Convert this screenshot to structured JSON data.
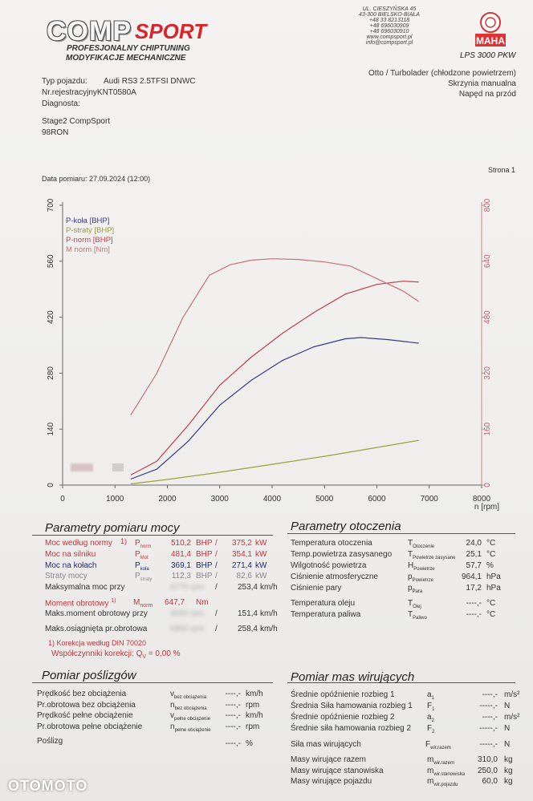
{
  "header": {
    "logo_comp": "COMP",
    "logo_sport": "SPORT",
    "tagline_1": "PROFESJONALNY CHIPTUNING",
    "tagline_2": "MODYFIKACJE MECHANICZNE",
    "address": [
      "UL. CIESZYŃSKA 45",
      "43-300 BIELSKO-BIAŁA",
      "+48 33 8213118",
      "+48 696030909",
      "+48 696030910",
      "www.compsport.pl",
      "info@compsport.pl"
    ],
    "maha_label": "MAHA",
    "lps": "LPS 3000 PKW"
  },
  "vehicle": {
    "typ_label": "Typ pojazdu:",
    "typ_value": "Audi RS3 2.5TFSI DNWC",
    "nr_rej": "Nr.rejestracyjnyKNT0580A",
    "diagnosta": "Diagnosta:",
    "stage": "Stage2 CompSport",
    "fuel": "98RON",
    "engine": "Otto / Turbolader (chłodzone powietrzem)",
    "gearbox": "Skrzynia manualna",
    "drive": "Napęd na przód",
    "date": "Data pomiaru: 27.09.2024 (12:00)",
    "page": "Strona 1"
  },
  "chart_data": {
    "type": "line",
    "xlabel": "n [rpm]",
    "xlim": [
      0,
      8000
    ],
    "x_ticks": [
      0,
      1000,
      2000,
      3000,
      4000,
      5000,
      6000,
      7000,
      8000
    ],
    "ylim_left": [
      0,
      700
    ],
    "y_ticks_left": [
      0,
      140,
      280,
      420,
      560,
      700
    ],
    "ylim_right": [
      0,
      800
    ],
    "y_ticks_right": [
      0,
      160,
      320,
      480,
      640,
      800
    ],
    "legend": [
      {
        "label": "P-koła [BHP]",
        "color": "#3a3a8a"
      },
      {
        "label": "P-straty [BHP]",
        "color": "#9aa23a"
      },
      {
        "label": "P-norm [BHP]",
        "color": "#c0404a"
      },
      {
        "label": "M norm [Nm]",
        "color": "#c87078"
      }
    ],
    "series": [
      {
        "name": "P-koła [BHP]",
        "axis": "left",
        "color": "#3a3a8a",
        "x": [
          1300,
          1800,
          2400,
          3000,
          3600,
          4200,
          4800,
          5400,
          5700,
          6200,
          6800
        ],
        "y": [
          15,
          40,
          110,
          200,
          262,
          312,
          346,
          366,
          369,
          364,
          355
        ]
      },
      {
        "name": "P-straty [BHP]",
        "axis": "left",
        "color": "#9aa23a",
        "x": [
          1300,
          2000,
          3000,
          4000,
          5000,
          6000,
          6800
        ],
        "y": [
          3,
          14,
          32,
          52,
          72,
          94,
          112
        ]
      },
      {
        "name": "P-norm [BHP]",
        "axis": "left",
        "color": "#c0404a",
        "x": [
          1300,
          1800,
          2400,
          3000,
          3600,
          4200,
          4800,
          5400,
          6000,
          6500,
          6800
        ],
        "y": [
          25,
          60,
          150,
          250,
          320,
          380,
          432,
          478,
          502,
          510,
          508
        ]
      },
      {
        "name": "M norm [Nm]",
        "axis": "right",
        "color": "#c87078",
        "x": [
          1300,
          1800,
          2300,
          2800,
          3200,
          3600,
          4000,
          4500,
          5000,
          5500,
          6000,
          6500,
          6800
        ],
        "y": [
          200,
          320,
          480,
          600,
          630,
          643,
          647,
          645,
          638,
          626,
          590,
          555,
          525
        ]
      }
    ]
  },
  "params_moc": {
    "title": "Parametry pomiaru mocy",
    "rows": [
      {
        "label": "Moc według normy",
        "sup": "1)",
        "sym": "P",
        "sub": "norm",
        "v1": "510,2",
        "u1": "BHP",
        "v2": "375,2",
        "u2": "kW",
        "cls": "red"
      },
      {
        "label": "Moc na silniku",
        "sup": "",
        "sym": "P",
        "sub": "Mot",
        "v1": "481,4",
        "u1": "BHP",
        "v2": "354,1",
        "u2": "kW",
        "cls": "red"
      },
      {
        "label": "Moc na kołach",
        "sup": "",
        "sym": "P",
        "sub": "koła",
        "v1": "369,1",
        "u1": "BHP",
        "v2": "271,4",
        "u2": "kW",
        "cls": "blue"
      },
      {
        "label": "Straty mocy",
        "sup": "",
        "sym": "P",
        "sub": "straty",
        "v1": "112,3",
        "u1": "BHP",
        "v2": "82,6",
        "u2": "kW",
        "cls": "grey"
      }
    ],
    "max_moc_label": "Maksymalna moc przy",
    "max_moc_val": "253,4",
    "max_moc_unit": "km/h",
    "moment_label": "Moment obrotowy",
    "moment_sup": "1)",
    "moment_sym": "M",
    "moment_sub": "norm",
    "moment_val": "647,7",
    "moment_unit": "Nm",
    "maks_moment_label": "Maks.moment obrotowy przy",
    "maks_moment_val": "151,4",
    "maks_moment_unit": "km/h",
    "maks_obr_label": "Maks.osiągnięta pr.obrotowa",
    "maks_obr_val": "258,4",
    "maks_obr_unit": "km/h",
    "korekcja": "1) Korekcja według DIN 70020",
    "wsp_label": "Współczynniki korekcji: Q",
    "wsp_sub": "V",
    "wsp_val": "= 0,00 %"
  },
  "params_otoczenia": {
    "title": "Parametry otoczenia",
    "rows": [
      {
        "label": "Temperatura otoczenia",
        "sym": "T",
        "sub": "Otoczenie",
        "val": "24,0",
        "unit": "°C"
      },
      {
        "label": "Temp.powietrza zasysanego",
        "sym": "T",
        "sub": "Powietrze zasysane",
        "val": "25,1",
        "unit": "°C"
      },
      {
        "label": "Wilgotność powietrza",
        "sym": "H",
        "sub": "Powietrze",
        "val": "57,7",
        "unit": "%"
      },
      {
        "label": "Ciśnienie atmosferyczne",
        "sym": "p",
        "sub": "Powietrze",
        "val": "964,1",
        "unit": "hPa"
      },
      {
        "label": "Ciśnienie pary",
        "sym": "p",
        "sub": "Para",
        "val": "17,2",
        "unit": "hPa"
      },
      {
        "label": "Temperatura oleju",
        "sym": "T",
        "sub": "Olej",
        "val": "----,-",
        "unit": "°C"
      },
      {
        "label": "Temperatura paliwa",
        "sym": "T",
        "sub": "Paliwo",
        "val": "----,-",
        "unit": "°C"
      }
    ]
  },
  "pomiar_poslizgow": {
    "title": "Pomiar poślizgów",
    "rows": [
      {
        "label": "Prędkość bez obciążenia",
        "sym": "v",
        "sub": "bez obciążenia",
        "val": "----,-",
        "unit": "km/h"
      },
      {
        "label": "Pr.obrotowa bez obciążenia",
        "sym": "n",
        "sub": "bez obciążenia",
        "val": "----,-",
        "unit": "rpm"
      },
      {
        "label": "Prędkość pełne obciążenie",
        "sym": "v",
        "sub": "pełne obciążenie",
        "val": "----,-",
        "unit": "km/h"
      },
      {
        "label": "Pr.obrotowa pełne obciążenie",
        "sym": "n",
        "sub": "pełne obciążenie",
        "val": "----,-",
        "unit": "rpm"
      }
    ],
    "poslizg_label": "Poślizg",
    "poslizg_val": "----,-",
    "poslizg_unit": "%"
  },
  "pomiar_mas": {
    "title": "Pomiar mas wirujących",
    "rows": [
      {
        "label": "Średnie opóźnienie rozbieg 1",
        "sym": "a",
        "sub": "1",
        "val": "----,-",
        "unit": "m/s²"
      },
      {
        "label": "Średnia Siła hamowania rozbieg 1",
        "sym": "F",
        "sub": "1",
        "val": "-----,-",
        "unit": "N"
      },
      {
        "label": "Średnie opóźnienie rozbieg 2",
        "sym": "a",
        "sub": "2",
        "val": "----,-",
        "unit": "m/s²"
      },
      {
        "label": "Średnie siła hamowania rozbieg 2",
        "sym": "F",
        "sub": "2",
        "val": "-----,-",
        "unit": "N"
      }
    ],
    "siła_label": "Siła mas wirujących",
    "siła_sym": "F",
    "siła_sub": "wir.razem",
    "siła_val": "-----,-",
    "siła_unit": "N",
    "masy": [
      {
        "label": "Masy wirujące razem",
        "sym": "m",
        "sub": "wir.razem",
        "val": "310,0",
        "unit": "kg"
      },
      {
        "label": "Masy wirujące stanowiska",
        "sym": "m",
        "sub": "wir.stanowiska",
        "val": "250,0",
        "unit": "kg"
      },
      {
        "label": "Masy wirujące pojazdu",
        "sym": "m",
        "sub": "wir.pojazdu",
        "val": "60,0",
        "unit": "kg"
      }
    ]
  },
  "watermark": "OTOMOTO"
}
